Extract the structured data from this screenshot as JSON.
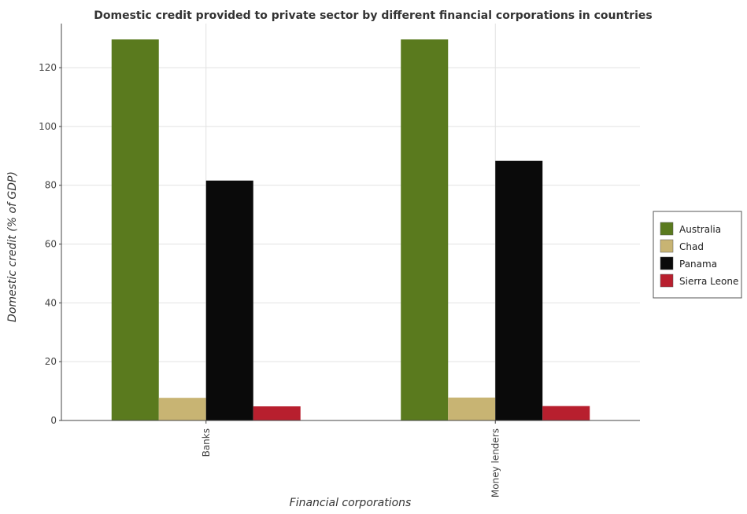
{
  "chart_data": {
    "type": "bar",
    "title": "Domestic credit provided to private sector by different financial corporations in countries",
    "xlabel": "Financial corporations",
    "ylabel": "Domestic credit (% of GDP)",
    "categories": [
      "Banks",
      "Money lenders"
    ],
    "ylim": [
      0,
      135
    ],
    "yticks": [
      "0",
      "20",
      "40",
      "60",
      "80",
      "100",
      "120"
    ],
    "grid": true,
    "legend_position": "right",
    "series": [
      {
        "name": "Australia",
        "color": "#5a7a1e",
        "values": [
          129.6,
          129.6
        ]
      },
      {
        "name": "Chad",
        "color": "#c8b473",
        "values": [
          7.7,
          7.8
        ]
      },
      {
        "name": "Panama",
        "color": "#0a0a0a",
        "values": [
          81.6,
          88.3
        ]
      },
      {
        "name": "Sierra Leone",
        "color": "#b81f2e",
        "values": [
          4.8,
          4.9
        ]
      }
    ]
  }
}
